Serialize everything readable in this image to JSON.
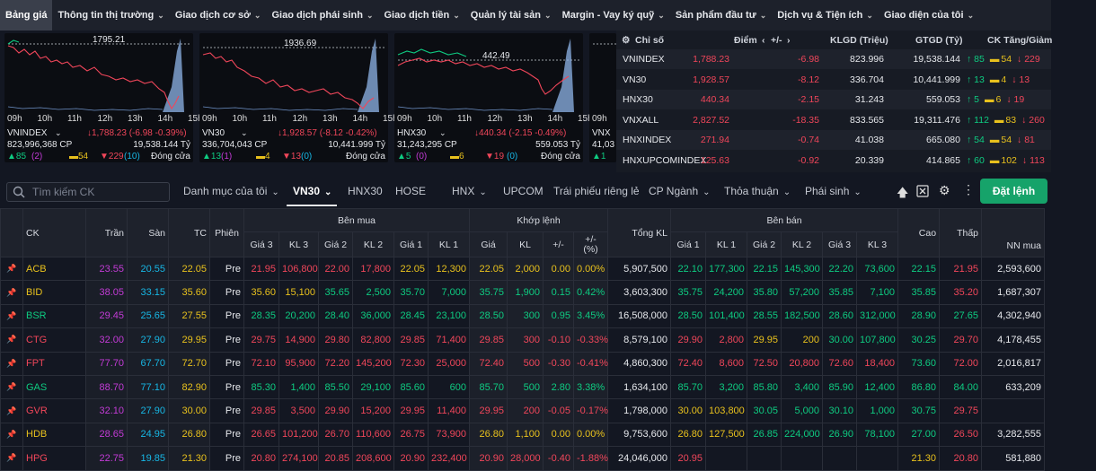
{
  "topnav": {
    "items": [
      "Bảng giá",
      "Thông tin thị trường",
      "Giao dịch cơ sở",
      "Giao dịch phái sinh",
      "Giao dịch tiền",
      "Quản lý tài sản",
      "Margin - Vay ký quỹ",
      "Sản phẩm đầu tư",
      "Dịch vụ & Tiện ích",
      "Giao diện của tôi"
    ]
  },
  "charts": [
    {
      "ref": "1795.21",
      "name": "VNINDEX",
      "volume": "823,996,368 CP",
      "change": "↓1,788.23 (-6.98 -0.39%)",
      "value": "19,538.144 Tỷ",
      "up": "▲85",
      "ceil": "(2)",
      "ref_count": "▬54",
      "down": "▼229",
      "floor": "(10)",
      "status": "Đóng cửa",
      "ticks": [
        "09h",
        "10h",
        "11h",
        "12h",
        "13h",
        "14h",
        "15h"
      ]
    },
    {
      "ref": "1936.69",
      "name": "VN30",
      "volume": "336,704,043 CP",
      "change": "↓1,928.57 (-8.12 -0.42%)",
      "value": "10,441.999 Tỷ",
      "up": "▲13",
      "ceil": "(1)",
      "ref_count": "▬4",
      "down": "▼13",
      "floor": "(0)",
      "status": "Đóng cửa",
      "ticks": [
        "09h",
        "10h",
        "11h",
        "12h",
        "13h",
        "14h",
        "15h"
      ]
    },
    {
      "ref": "442.49",
      "name": "HNX30",
      "volume": "31,243,295 CP",
      "change": "↓440.34 (-2.15 -0.49%)",
      "value": "559.053 Tỷ",
      "up": "▲5",
      "ceil": "(0)",
      "ref_count": "▬6",
      "down": "▼19",
      "floor": "(0)",
      "status": "Đóng cửa",
      "ticks": [
        "09h",
        "10h",
        "11h",
        "12h",
        "13h",
        "14h",
        "15h"
      ]
    },
    {
      "ref": "",
      "name": "VNX",
      "volume": "41,03",
      "change": "",
      "value": "",
      "up": "▲1",
      "ceil": "",
      "ref_count": "",
      "down": "",
      "floor": "",
      "status": "",
      "ticks": [
        "09h"
      ]
    }
  ],
  "index_table": {
    "headers": {
      "name": "Chỉ số",
      "point": "Điểm",
      "change": "+/-",
      "volume": "KLGD (Triệu)",
      "value": "GTGD (Tỷ)",
      "breadth": "CK Tăng/Giảm"
    },
    "rows": [
      {
        "name": "VNINDEX",
        "point": "1,788.23",
        "change": "-6.98",
        "volume": "823.996",
        "value": "19,538.144",
        "up": "85",
        "ref": "54",
        "down": "229"
      },
      {
        "name": "VN30",
        "point": "1,928.57",
        "change": "-8.12",
        "volume": "336.704",
        "value": "10,441.999",
        "up": "13",
        "ref": "4",
        "down": "13"
      },
      {
        "name": "HNX30",
        "point": "440.34",
        "change": "-2.15",
        "volume": "31.243",
        "value": "559.053",
        "up": "5",
        "ref": "6",
        "down": "19"
      },
      {
        "name": "VNXALL",
        "point": "2,827.52",
        "change": "-18.35",
        "volume": "833.565",
        "value": "19,311.476",
        "up": "112",
        "ref": "83",
        "down": "260"
      },
      {
        "name": "HNXINDEX",
        "point": "271.94",
        "change": "-0.74",
        "volume": "41.038",
        "value": "665.080",
        "up": "54",
        "ref": "54",
        "down": "81"
      },
      {
        "name": "HNXUPCOMINDEX",
        "point": "125.63",
        "change": "-0.92",
        "volume": "20.339",
        "value": "414.865",
        "up": "60",
        "ref": "102",
        "down": "113"
      }
    ]
  },
  "toolbar": {
    "search_placeholder": "Tìm kiếm CK",
    "tabs": [
      "Danh mục của tôi",
      "VN30",
      "HNX30",
      "HOSE",
      "HNX",
      "UPCOM",
      "Trái phiếu riêng lẻ",
      "CP Ngành",
      "Thỏa thuận",
      "Phái sinh"
    ],
    "order_label": "Đặt lệnh"
  },
  "board": {
    "group_headers": {
      "buy": "Bên mua",
      "match": "Khớp lệnh",
      "sell": "Bên bán"
    },
    "headers": {
      "symbol": "CK",
      "ceiling": "Trần",
      "floor": "Sàn",
      "ref": "TC",
      "session": "Phiên",
      "g3": "Giá 3",
      "kl3": "KL 3",
      "g2": "Giá 2",
      "kl2": "KL 2",
      "g1": "Giá 1",
      "kl1": "KL 1",
      "price": "Giá",
      "vol": "KL",
      "chg": "+/-",
      "pct": "+/- (%)",
      "total": "Tổng KL",
      "high": "Cao",
      "low": "Thấp",
      "foreign": "NN mua"
    },
    "rows": [
      {
        "sym": "ACB",
        "c": "y",
        "ceil": "23.55",
        "floor": "20.55",
        "ref": "22.05",
        "ses": "Pre",
        "b3": "21.95",
        "b3c": "r",
        "bk3": "106,800",
        "b2": "22.00",
        "b2c": "r",
        "bk2": "17,800",
        "b1": "22.05",
        "b1c": "y",
        "bk1": "12,300",
        "mp": "22.05",
        "mpc": "y",
        "mv": "2,000",
        "ch": "0.00",
        "pc": "0.00%",
        "tot": "5,907,500",
        "s1": "22.10",
        "s1c": "g",
        "sk1": "177,300",
        "s2": "22.15",
        "s2c": "g",
        "sk2": "145,300",
        "s3": "22.20",
        "s3c": "g",
        "sk3": "73,600",
        "hi": "22.15",
        "hic": "g",
        "lo": "21.95",
        "loc": "r",
        "nn": "2,593,600"
      },
      {
        "sym": "BID",
        "c": "y",
        "ceil": "38.05",
        "floor": "33.15",
        "ref": "35.60",
        "ses": "Pre",
        "b3": "35.60",
        "b3c": "y",
        "bk3": "15,100",
        "b2": "35.65",
        "b2c": "g",
        "bk2": "2,500",
        "b1": "35.70",
        "b1c": "g",
        "bk1": "7,000",
        "mp": "35.75",
        "mpc": "g",
        "mv": "1,900",
        "ch": "0.15",
        "pc": "0.42%",
        "tot": "3,603,300",
        "s1": "35.75",
        "s1c": "g",
        "sk1": "24,200",
        "s2": "35.80",
        "s2c": "g",
        "sk2": "57,200",
        "s3": "35.85",
        "s3c": "g",
        "sk3": "7,100",
        "hi": "35.85",
        "hic": "g",
        "lo": "35.20",
        "loc": "r",
        "nn": "1,687,307"
      },
      {
        "sym": "BSR",
        "c": "g",
        "ceil": "29.45",
        "floor": "25.65",
        "ref": "27.55",
        "ses": "Pre",
        "b3": "28.35",
        "b3c": "g",
        "bk3": "20,200",
        "b2": "28.40",
        "b2c": "g",
        "bk2": "36,000",
        "b1": "28.45",
        "b1c": "g",
        "bk1": "23,100",
        "mp": "28.50",
        "mpc": "g",
        "mv": "300",
        "ch": "0.95",
        "pc": "3.45%",
        "tot": "16,508,000",
        "s1": "28.50",
        "s1c": "g",
        "sk1": "101,400",
        "s2": "28.55",
        "s2c": "g",
        "sk2": "182,500",
        "s3": "28.60",
        "s3c": "g",
        "sk3": "312,000",
        "hi": "28.90",
        "hic": "g",
        "lo": "27.65",
        "loc": "g",
        "nn": "4,302,940"
      },
      {
        "sym": "CTG",
        "c": "r",
        "ceil": "32.00",
        "floor": "27.90",
        "ref": "29.95",
        "ses": "Pre",
        "b3": "29.75",
        "b3c": "r",
        "bk3": "14,900",
        "b2": "29.80",
        "b2c": "r",
        "bk2": "82,800",
        "b1": "29.85",
        "b1c": "r",
        "bk1": "71,400",
        "mp": "29.85",
        "mpc": "r",
        "mv": "300",
        "ch": "-0.10",
        "pc": "-0.33%",
        "tot": "8,579,100",
        "s1": "29.90",
        "s1c": "r",
        "sk1": "2,800",
        "s2": "29.95",
        "s2c": "y",
        "sk2": "200",
        "s3": "30.00",
        "s3c": "g",
        "sk3": "107,800",
        "hi": "30.25",
        "hic": "g",
        "lo": "29.70",
        "loc": "r",
        "nn": "4,178,455"
      },
      {
        "sym": "FPT",
        "c": "r",
        "ceil": "77.70",
        "floor": "67.70",
        "ref": "72.70",
        "ses": "Pre",
        "b3": "72.10",
        "b3c": "r",
        "bk3": "95,900",
        "b2": "72.20",
        "b2c": "r",
        "bk2": "145,200",
        "b1": "72.30",
        "b1c": "r",
        "bk1": "25,000",
        "mp": "72.40",
        "mpc": "r",
        "mv": "500",
        "ch": "-0.30",
        "pc": "-0.41%",
        "tot": "4,860,300",
        "s1": "72.40",
        "s1c": "r",
        "sk1": "8,600",
        "s2": "72.50",
        "s2c": "r",
        "sk2": "20,800",
        "s3": "72.60",
        "s3c": "r",
        "sk3": "18,400",
        "hi": "73.60",
        "hic": "g",
        "lo": "72.00",
        "loc": "r",
        "nn": "2,016,817"
      },
      {
        "sym": "GAS",
        "c": "g",
        "ceil": "88.70",
        "floor": "77.10",
        "ref": "82.90",
        "ses": "Pre",
        "b3": "85.30",
        "b3c": "g",
        "bk3": "1,400",
        "b2": "85.50",
        "b2c": "g",
        "bk2": "29,100",
        "b1": "85.60",
        "b1c": "g",
        "bk1": "600",
        "mp": "85.70",
        "mpc": "g",
        "mv": "500",
        "ch": "2.80",
        "pc": "3.38%",
        "tot": "1,634,100",
        "s1": "85.70",
        "s1c": "g",
        "sk1": "3,200",
        "s2": "85.80",
        "s2c": "g",
        "sk2": "3,400",
        "s3": "85.90",
        "s3c": "g",
        "sk3": "12,400",
        "hi": "86.80",
        "hic": "g",
        "lo": "84.00",
        "loc": "g",
        "nn": "633,209"
      },
      {
        "sym": "GVR",
        "c": "r",
        "ceil": "32.10",
        "floor": "27.90",
        "ref": "30.00",
        "ses": "Pre",
        "b3": "29.85",
        "b3c": "r",
        "bk3": "3,500",
        "b2": "29.90",
        "b2c": "r",
        "bk2": "15,200",
        "b1": "29.95",
        "b1c": "r",
        "bk1": "11,400",
        "mp": "29.95",
        "mpc": "r",
        "mv": "200",
        "ch": "-0.05",
        "pc": "-0.17%",
        "tot": "1,798,000",
        "s1": "30.00",
        "s1c": "y",
        "sk1": "103,800",
        "s2": "30.05",
        "s2c": "g",
        "sk2": "5,000",
        "s3": "30.10",
        "s3c": "g",
        "sk3": "1,000",
        "hi": "30.75",
        "hic": "g",
        "lo": "29.75",
        "loc": "r",
        "nn": ""
      },
      {
        "sym": "HDB",
        "c": "y",
        "ceil": "28.65",
        "floor": "24.95",
        "ref": "26.80",
        "ses": "Pre",
        "b3": "26.65",
        "b3c": "r",
        "bk3": "101,200",
        "b2": "26.70",
        "b2c": "r",
        "bk2": "110,600",
        "b1": "26.75",
        "b1c": "r",
        "bk1": "73,900",
        "mp": "26.80",
        "mpc": "y",
        "mv": "1,100",
        "ch": "0.00",
        "pc": "0.00%",
        "tot": "9,753,600",
        "s1": "26.80",
        "s1c": "y",
        "sk1": "127,500",
        "s2": "26.85",
        "s2c": "g",
        "sk2": "224,000",
        "s3": "26.90",
        "s3c": "g",
        "sk3": "78,100",
        "hi": "27.00",
        "hic": "g",
        "lo": "26.50",
        "loc": "r",
        "nn": "3,282,555"
      },
      {
        "sym": "HPG",
        "c": "r",
        "ceil": "22.75",
        "floor": "19.85",
        "ref": "21.30",
        "ses": "Pre",
        "b3": "20.80",
        "b3c": "r",
        "bk3": "274,100",
        "b2": "20.85",
        "b2c": "r",
        "bk2": "208,600",
        "b1": "20.90",
        "b1c": "r",
        "bk1": "232,400",
        "mp": "20.90",
        "mpc": "r",
        "mv": "28,000",
        "ch": "-0.40",
        "pc": "-1.88%",
        "tot": "24,046,000",
        "s1": "20.95",
        "s1c": "r",
        "sk1": "",
        "s2": "",
        "s2c": "r",
        "sk2": "",
        "s3": "",
        "s3c": "r",
        "sk3": "",
        "hi": "21.30",
        "hic": "y",
        "lo": "20.80",
        "loc": "r",
        "nn": "581,880"
      }
    ]
  }
}
